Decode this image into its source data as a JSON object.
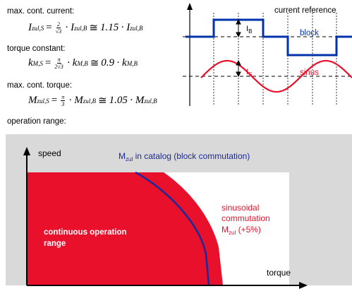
{
  "formulas": {
    "current": {
      "label": "max. cont. current:",
      "lhs": "I",
      "lhs_sub": "zul,S",
      "frac_num": "2",
      "frac_den": "√3",
      "mid": "I",
      "mid_sub": "zul,B",
      "approx": "1.15",
      "rhs": "I",
      "rhs_sub": "zul,B"
    },
    "torque_constant": {
      "label": "torque constant:",
      "lhs": "k",
      "lhs_sub": "M,S",
      "frac_num": "π",
      "frac_den": "2√3",
      "mid": "k",
      "mid_sub": "M,B",
      "approx": "0.9",
      "rhs": "k",
      "rhs_sub": "M,B"
    },
    "torque": {
      "label": "max. cont. torque:",
      "lhs": "M",
      "lhs_sub": "zul,S",
      "frac_num": "π",
      "frac_den": "3",
      "mid": "M",
      "mid_sub": "zul,B",
      "approx": "1.05",
      "rhs": "M",
      "rhs_sub": "zul,B"
    },
    "operation_label": "operation range:"
  },
  "waveform": {
    "title": "current reference",
    "block_label": "block",
    "sinus_label": "sinus",
    "ib_label": "I",
    "ib_sub": "B",
    "is_label": "I",
    "is_sub": "S",
    "block_color": "#0033aa",
    "sinus_color": "#e8102a"
  },
  "operation_chart": {
    "y_label": "speed",
    "x_label": "torque",
    "catalog_label_prefix": "M",
    "catalog_label_sub": "zul",
    "catalog_label_suffix": " in catalog (block commutation)",
    "region_label_line1": "continuous operation",
    "region_label_line2": "range",
    "sin_label_line1": "sinusoidal",
    "sin_label_line2": "commutation",
    "sin_label_line3_prefix": "M",
    "sin_label_line3_sub": "zul",
    "sin_label_line3_suffix": " (+5%)",
    "panel_color": "#d9d9d9",
    "region_color": "#e8102a",
    "boundary_color": "#1a2a9a"
  }
}
